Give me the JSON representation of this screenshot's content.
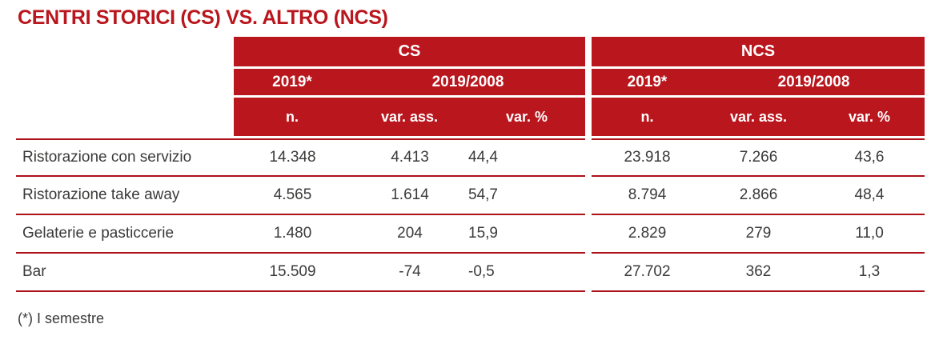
{
  "title": "CENTRI STORICI (CS) VS. ALTRO (NCS)",
  "colors": {
    "accent_red": "#b9161d",
    "separator_red": "#ae1219",
    "header_text": "#ffffff",
    "body_text": "#3a3a39"
  },
  "header": {
    "cs": {
      "group_label": "CS",
      "year_label": "2019*",
      "period_label": "2019/2008",
      "columns": [
        "n.",
        "var. ass.",
        "var. %"
      ]
    },
    "ncs": {
      "group_label": "NCS",
      "year_label": "2019*",
      "period_label": "2019/2008",
      "columns": [
        "n.",
        "var. ass.",
        "var. %"
      ]
    }
  },
  "rows": [
    {
      "label": "Ristorazione con servizio",
      "cs": {
        "n": "14.348",
        "var_ass": "4.413",
        "var_pct": "44,4"
      },
      "ncs": {
        "n": "23.918",
        "var_ass": "7.266",
        "var_pct": "43,6"
      }
    },
    {
      "label": "Ristorazione take away",
      "cs": {
        "n": "4.565",
        "var_ass": "1.614",
        "var_pct": "54,7"
      },
      "ncs": {
        "n": "8.794",
        "var_ass": "2.866",
        "var_pct": "48,4"
      }
    },
    {
      "label": "Gelaterie e pasticcerie",
      "cs": {
        "n": "1.480",
        "var_ass": "204",
        "var_pct": "15,9"
      },
      "ncs": {
        "n": "2.829",
        "var_ass": "279",
        "var_pct": "11,0"
      }
    },
    {
      "label": "Bar",
      "cs": {
        "n": "15.509",
        "var_ass": "-74",
        "var_pct": "-0,5"
      },
      "ncs": {
        "n": "27.702",
        "var_ass": "362",
        "var_pct": "1,3"
      }
    }
  ],
  "footnote": "(*) I semestre",
  "chart_data": {
    "type": "table",
    "title": "CENTRI STORICI (CS) VS. ALTRO (NCS)",
    "row_labels": [
      "Ristorazione con servizio",
      "Ristorazione take away",
      "Gelaterie e pasticcerie",
      "Bar"
    ],
    "groups": [
      {
        "name": "CS",
        "columns": [
          "n. (2019*)",
          "var. ass. (2019/2008)",
          "var. % (2019/2008)"
        ],
        "values": [
          [
            14348,
            4413,
            44.4
          ],
          [
            4565,
            1614,
            54.7
          ],
          [
            1480,
            204,
            15.9
          ],
          [
            15509,
            -74,
            -0.5
          ]
        ]
      },
      {
        "name": "NCS",
        "columns": [
          "n. (2019*)",
          "var. ass. (2019/2008)",
          "var. % (2019/2008)"
        ],
        "values": [
          [
            23918,
            7266,
            43.6
          ],
          [
            8794,
            2866,
            48.4
          ],
          [
            2829,
            279,
            11.0
          ],
          [
            27702,
            362,
            1.3
          ]
        ]
      }
    ],
    "footnote": "(*) I semestre",
    "layout": {
      "header_fill": "#b9161d",
      "row_separators": true,
      "grid": "horizontal-only"
    }
  }
}
